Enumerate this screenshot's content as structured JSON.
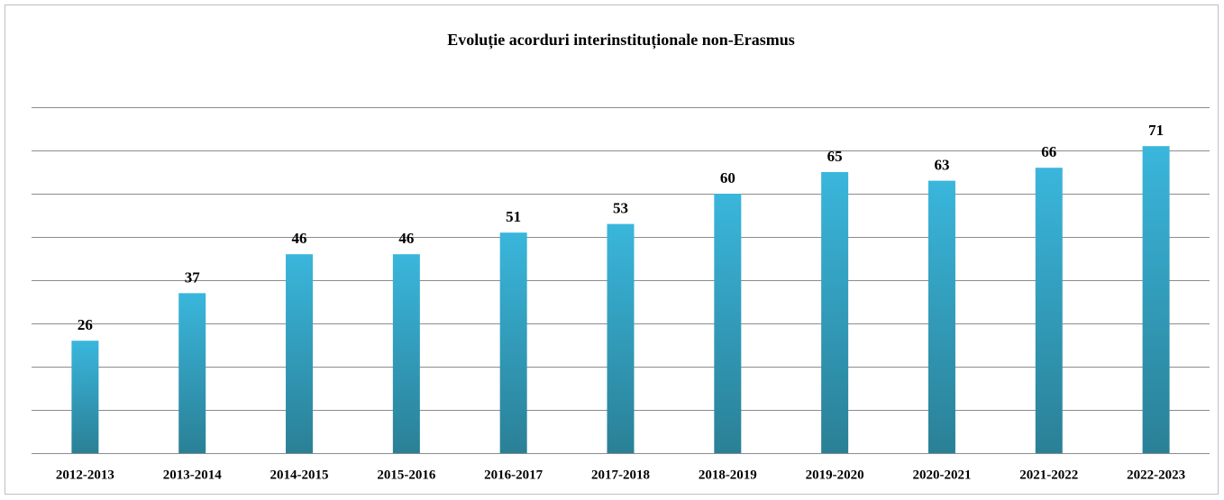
{
  "chart_data": {
    "type": "bar",
    "title": "Evoluție acorduri interinstituționale non-Erasmus",
    "categories": [
      "2012-2013",
      "2013-2014",
      "2014-2015",
      "2015-2016",
      "2016-2017",
      "2017-2018",
      "2018-2019",
      "2019-2020",
      "2020-2021",
      "2021-2022",
      "2022-2023"
    ],
    "values": [
      26,
      37,
      46,
      46,
      51,
      53,
      60,
      65,
      63,
      66,
      71
    ],
    "color": "#3ab6dc",
    "ylim": [
      0,
      80
    ],
    "yticks": [
      0,
      10,
      20,
      30,
      40,
      50,
      60,
      70,
      80
    ],
    "grid": true
  }
}
